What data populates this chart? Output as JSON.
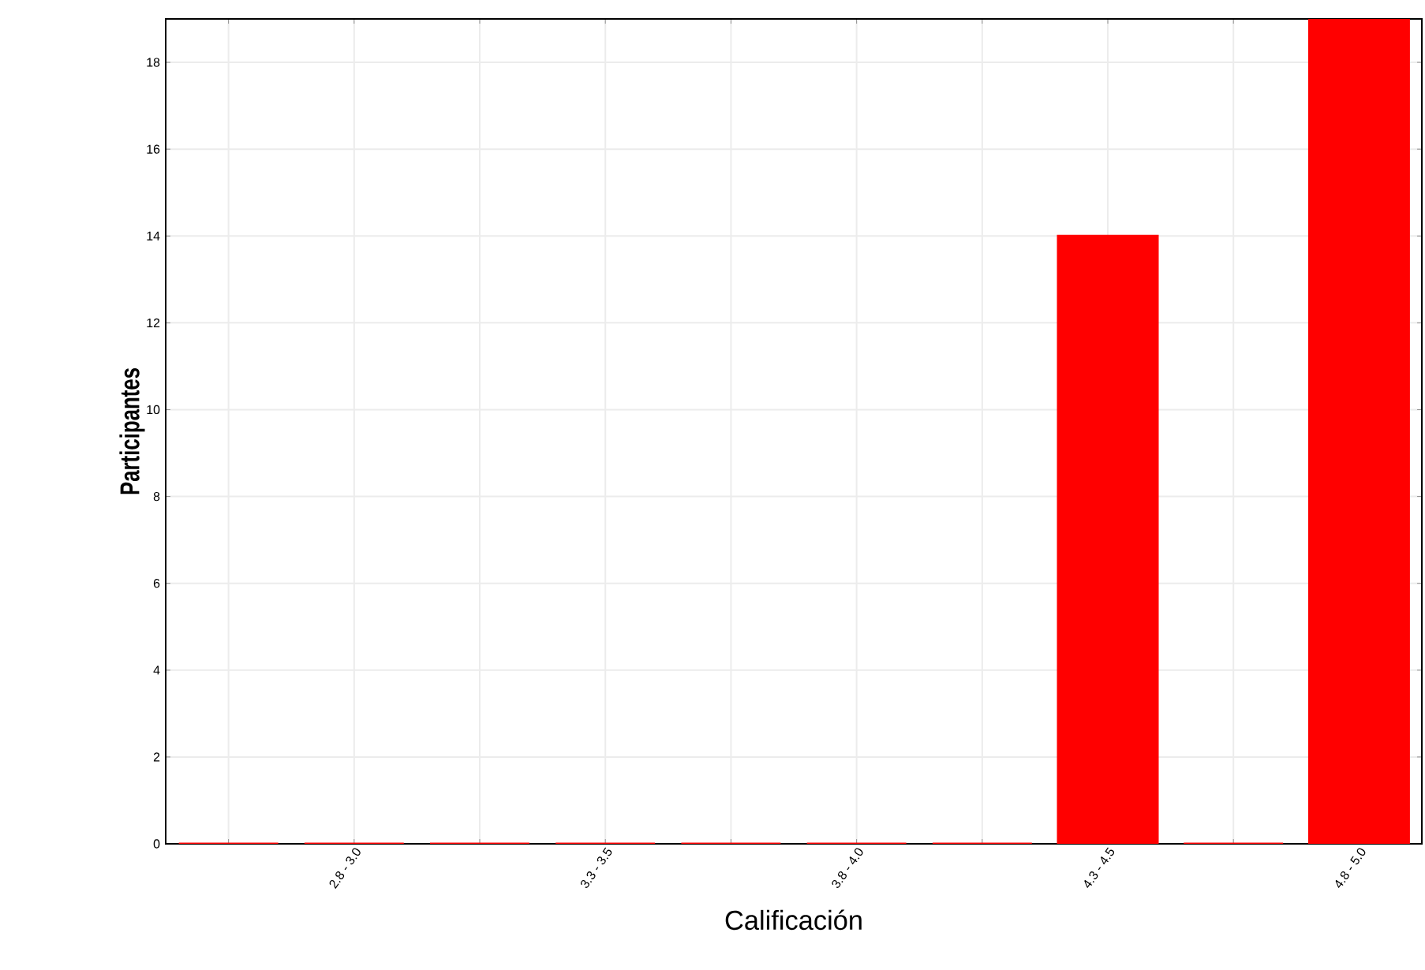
{
  "chart_data": {
    "type": "bar",
    "xlabel": "Calificación",
    "ylabel": "Participantes",
    "categories": [
      null,
      "2.8 - 3.0",
      null,
      "3.3 - 3.5",
      null,
      "3.8 - 4.0",
      null,
      "4.3 - 4.5",
      null,
      "4.8 - 5.0"
    ],
    "values": [
      0,
      0,
      0,
      0,
      0,
      0,
      0,
      14,
      0,
      19
    ],
    "color": "#ff0000",
    "ylim": [
      0,
      19
    ],
    "yticks": [
      0,
      2,
      4,
      6,
      8,
      10,
      12,
      14,
      16,
      18
    ],
    "grid": true
  }
}
